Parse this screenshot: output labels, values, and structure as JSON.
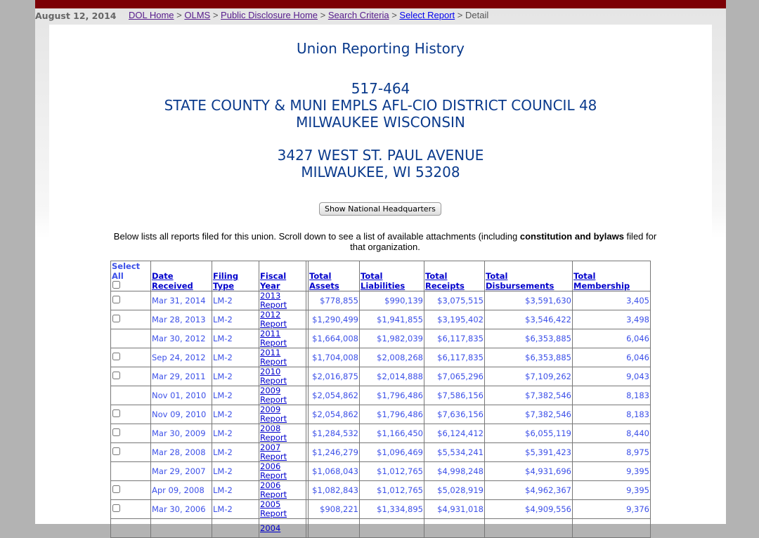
{
  "header": {
    "date": "August 12, 2014",
    "breadcrumbs": [
      "DOL Home",
      "OLMS",
      "Public Disclosure Home",
      "Search Criteria",
      "Select Report"
    ],
    "current": "Detail"
  },
  "title": "Union Reporting History",
  "union": {
    "file_number": "517-464",
    "name": "STATE COUNTY & MUNI EMPLS AFL-CIO DISTRICT COUNCIL 48",
    "location": "MILWAUKEE WISCONSIN",
    "address1": "3427 WEST ST. PAUL AVENUE",
    "address2": "MILWAUKEE, WI 53208"
  },
  "hq_button": "Show National Headquarters",
  "intro": {
    "before": "Below lists all reports filed for this union. Scroll down to see a list of available attachments (including ",
    "bold": "constitution and bylaws",
    "after": " filed for that organization."
  },
  "table": {
    "select_all": "Select All",
    "columns": [
      "Date Received",
      "Filing Type",
      "Fiscal Year",
      "Total Assets",
      "Total Liabilities",
      "Total Receipts",
      "Total Disbursements",
      "Total Membership"
    ],
    "rows": [
      {
        "cb": true,
        "date": "Mar 31, 2014",
        "type": "LM-2",
        "year": "2013",
        "link": "Report",
        "assets": "$778,855",
        "liab": "$990,139",
        "rec": "$3,075,515",
        "disb": "$3,591,630",
        "mem": "3,405"
      },
      {
        "cb": true,
        "date": "Mar 28, 2013",
        "type": "LM-2",
        "year": "2012",
        "link": "Report",
        "assets": "$1,290,499",
        "liab": "$1,941,855",
        "rec": "$3,195,402",
        "disb": "$3,546,422",
        "mem": "3,498"
      },
      {
        "cb": false,
        "date": "Mar 30, 2012",
        "type": "LM-2",
        "year": "2011",
        "link": "Report",
        "assets": "$1,664,008",
        "liab": "$1,982,039",
        "rec": "$6,117,835",
        "disb": "$6,353,885",
        "mem": "6,046"
      },
      {
        "cb": true,
        "date": "Sep 24, 2012",
        "type": "LM-2",
        "year": "2011",
        "link": "Report",
        "assets": "$1,704,008",
        "liab": "$2,008,268",
        "rec": "$6,117,835",
        "disb": "$6,353,885",
        "mem": "6,046"
      },
      {
        "cb": true,
        "date": "Mar 29, 2011",
        "type": "LM-2",
        "year": "2010",
        "link": "Report",
        "assets": "$2,016,875",
        "liab": "$2,014,888",
        "rec": "$7,065,296",
        "disb": "$7,109,262",
        "mem": "9,043"
      },
      {
        "cb": false,
        "date": "Nov 01, 2010",
        "type": "LM-2",
        "year": "2009",
        "link": "Report",
        "assets": "$2,054,862",
        "liab": "$1,796,486",
        "rec": "$7,586,156",
        "disb": "$7,382,546",
        "mem": "8,183"
      },
      {
        "cb": true,
        "date": "Nov 09, 2010",
        "type": "LM-2",
        "year": "2009",
        "link": "Report",
        "assets": "$2,054,862",
        "liab": "$1,796,486",
        "rec": "$7,636,156",
        "disb": "$7,382,546",
        "mem": "8,183"
      },
      {
        "cb": true,
        "date": "Mar 30, 2009",
        "type": "LM-2",
        "year": "2008",
        "link": "Report",
        "assets": "$1,284,532",
        "liab": "$1,166,450",
        "rec": "$6,124,412",
        "disb": "$6,055,119",
        "mem": "8,440"
      },
      {
        "cb": true,
        "date": "Mar 28, 2008",
        "type": "LM-2",
        "year": "2007",
        "link": "Report",
        "assets": "$1,246,279",
        "liab": "$1,096,469",
        "rec": "$5,534,241",
        "disb": "$5,391,423",
        "mem": "8,975"
      },
      {
        "cb": false,
        "date": "Mar 29, 2007",
        "type": "LM-2",
        "year": "2006",
        "link": "Report",
        "assets": "$1,068,043",
        "liab": "$1,012,765",
        "rec": "$4,998,248",
        "disb": "$4,931,696",
        "mem": "9,395"
      },
      {
        "cb": true,
        "date": "Apr 09, 2008",
        "type": "LM-2",
        "year": "2006",
        "link": "Report",
        "assets": "$1,082,843",
        "liab": "$1,012,765",
        "rec": "$5,028,919",
        "disb": "$4,962,367",
        "mem": "9,395"
      },
      {
        "cb": true,
        "date": "Mar 30, 2006",
        "type": "LM-2",
        "year": "2005",
        "link": "Report",
        "assets": "$908,221",
        "liab": "$1,334,895",
        "rec": "$4,931,018",
        "disb": "$4,909,556",
        "mem": "9,376"
      },
      {
        "cb": false,
        "date": "",
        "type": "",
        "year": "2004",
        "link": "",
        "assets": "",
        "liab": "",
        "rec": "",
        "disb": "",
        "mem": ""
      }
    ]
  }
}
